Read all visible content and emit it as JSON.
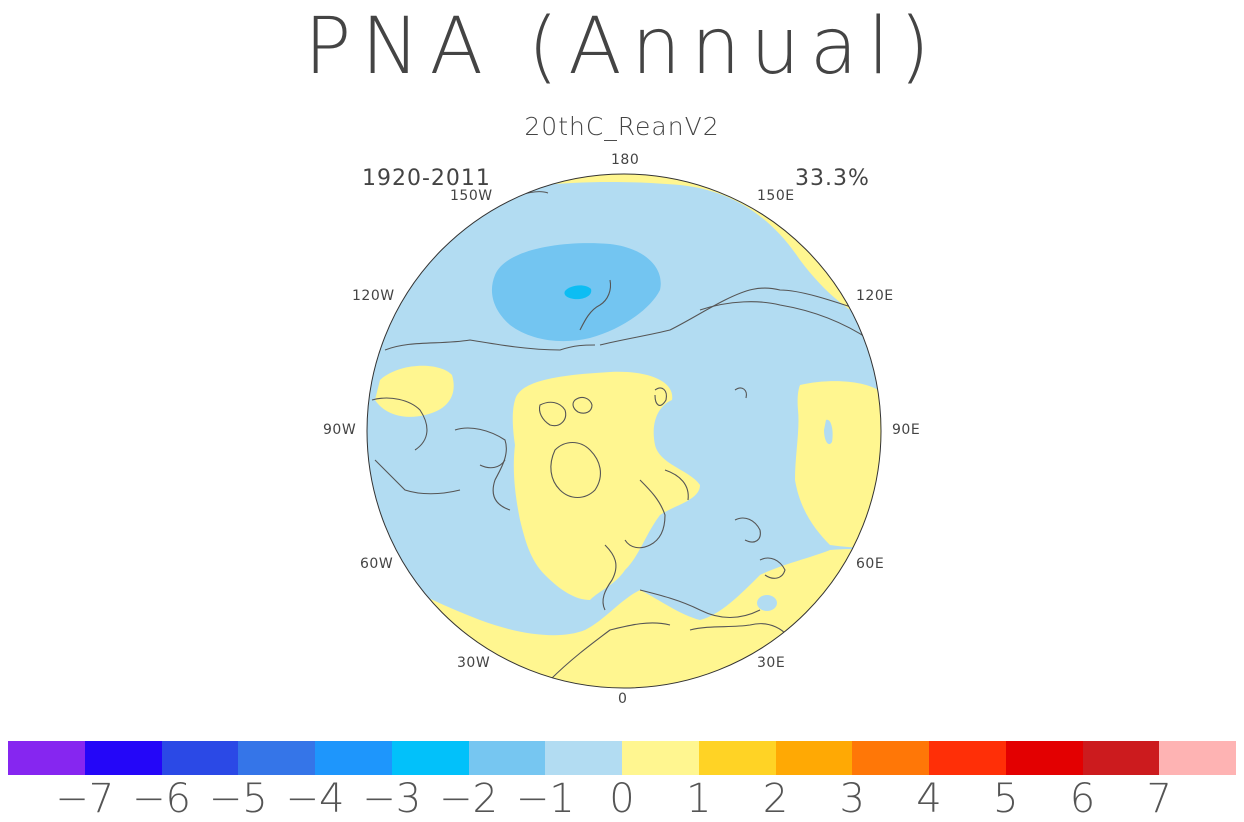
{
  "header": {
    "title": "PNA (Annual)",
    "subtitle": "20thC_ReanV2",
    "period": "1920-2011",
    "variance": "33.3%"
  },
  "map": {
    "projection": "north-polar-stereographic",
    "longitude_labels": [
      {
        "id": "180",
        "text": "180"
      },
      {
        "id": "150E",
        "text": "150E"
      },
      {
        "id": "120E",
        "text": "120E"
      },
      {
        "id": "90E",
        "text": "90E"
      },
      {
        "id": "60E",
        "text": "60E"
      },
      {
        "id": "30E",
        "text": "30E"
      },
      {
        "id": "0",
        "text": "0"
      },
      {
        "id": "30W",
        "text": "30W"
      },
      {
        "id": "60W",
        "text": "60W"
      },
      {
        "id": "90W",
        "text": "90W"
      },
      {
        "id": "120W",
        "text": "120W"
      },
      {
        "id": "150W",
        "text": "150W"
      }
    ],
    "colors": {
      "ocean_neg1": "#b2dcf2",
      "neg2": "#73c5f1",
      "neg3": "#0dbdf3",
      "pos1": "#fff690",
      "coastline": "#555555"
    }
  },
  "colorbar": {
    "colors": [
      "#8626f0",
      "#2406f8",
      "#2b49e6",
      "#3575e8",
      "#1e96fc",
      "#02c1fa",
      "#76c6f1",
      "#b2dcf2",
      "#fff690",
      "#ffd325",
      "#ffa904",
      "#ff7707",
      "#ff2f07",
      "#e30001",
      "#cc1b1e",
      "#feb3b3"
    ],
    "labels": [
      "−7",
      "−6",
      "−5",
      "−4",
      "−3",
      "−2",
      "−1",
      "0",
      "1",
      "2",
      "3",
      "4",
      "5",
      "6",
      "7"
    ]
  }
}
